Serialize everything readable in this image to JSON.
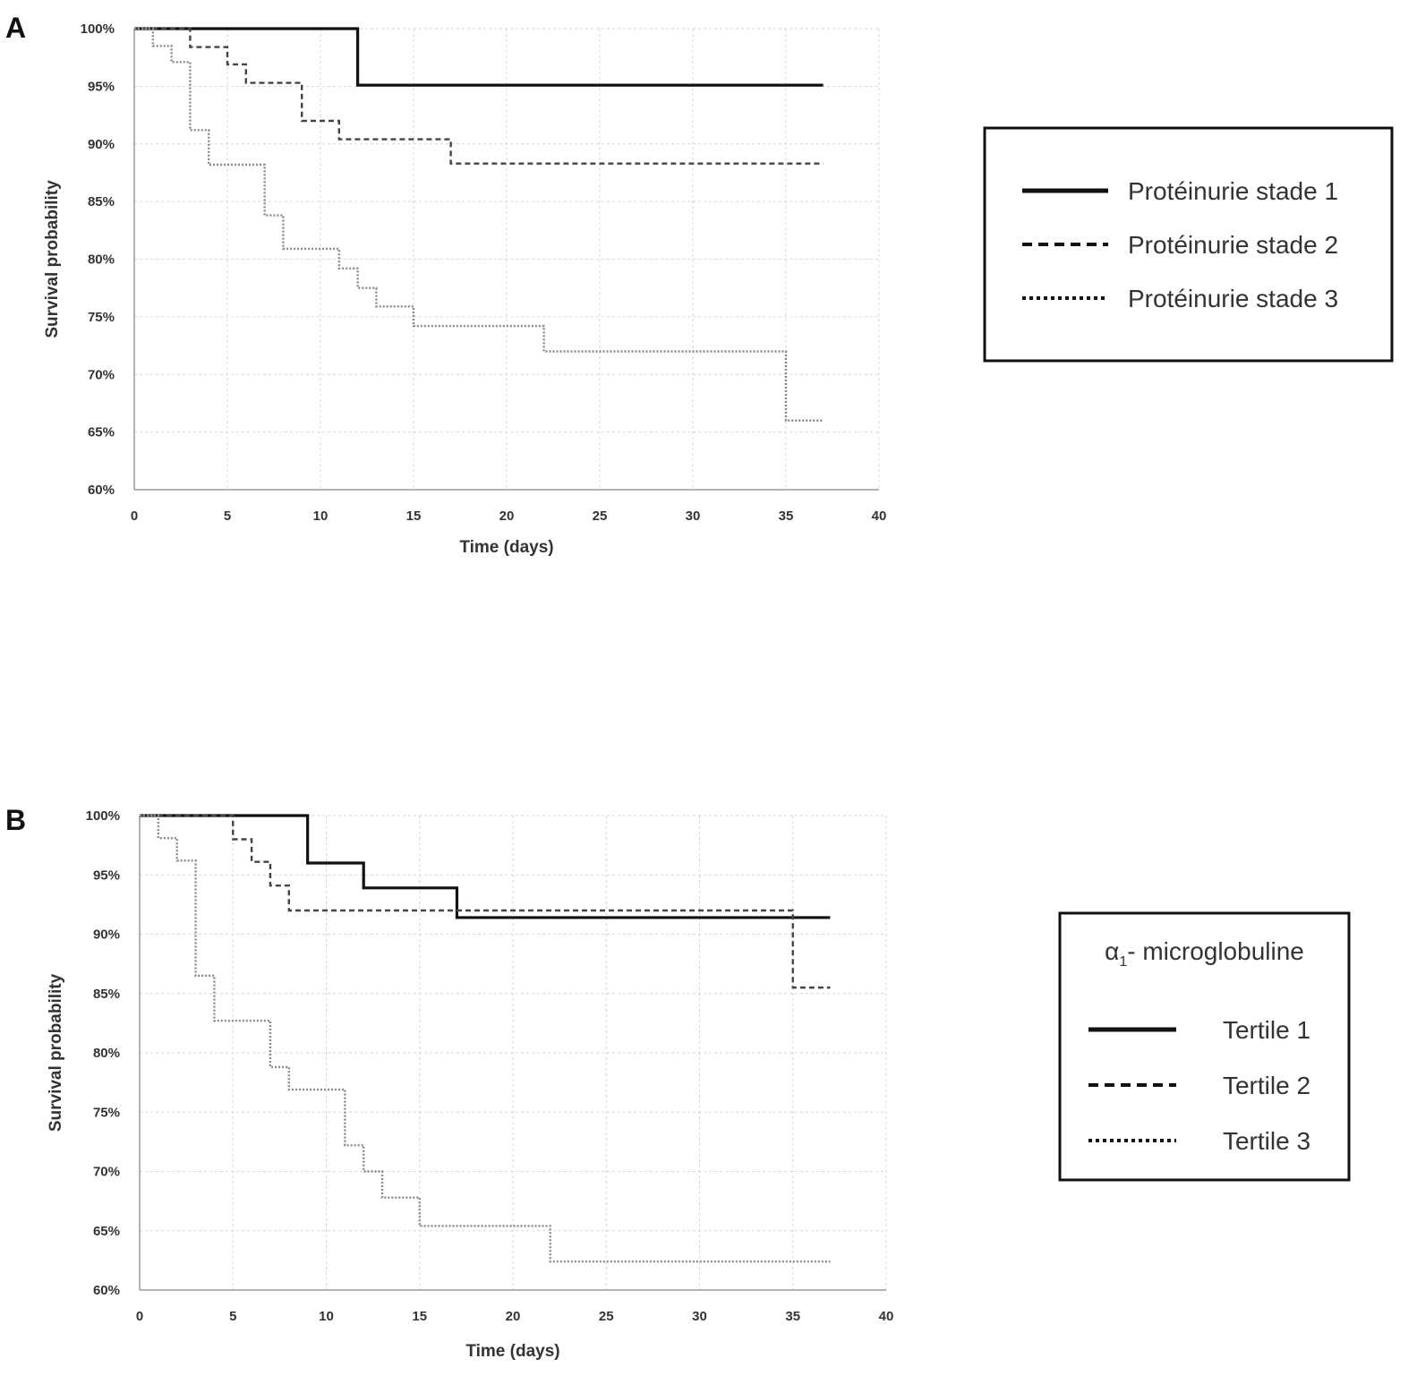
{
  "chart_data": [
    {
      "panel": "A",
      "type": "line",
      "xlabel": "Time (days)",
      "ylabel": "Survival probability",
      "xlim": [
        0,
        40
      ],
      "ylim": [
        0.6,
        1.0
      ],
      "xticks": [
        "0",
        "5",
        "10",
        "15",
        "20",
        "25",
        "30",
        "35",
        "40"
      ],
      "yticks": [
        "60%",
        "65%",
        "70%",
        "75%",
        "80%",
        "85%",
        "90%",
        "95%",
        "100%"
      ],
      "grid": true,
      "step": true,
      "legend": {
        "placement": "right",
        "title": "",
        "entries": [
          "Protéinurie stade 1",
          "Protéinurie stade 2",
          "Protéinurie stade 3"
        ]
      },
      "series": [
        {
          "name": "Protéinurie stade 1",
          "line_style": "solid",
          "color": "#111111",
          "x": [
            0,
            12,
            37
          ],
          "y": [
            1.0,
            0.951,
            0.951
          ]
        },
        {
          "name": "Protéinurie stade 2",
          "line_style": "dashed",
          "color": "#444444",
          "x": [
            0,
            3,
            5,
            6,
            9,
            11,
            17,
            37
          ],
          "y": [
            1.0,
            0.984,
            0.969,
            0.953,
            0.92,
            0.904,
            0.883,
            0.883
          ]
        },
        {
          "name": "Protéinurie stade 3",
          "line_style": "dotted",
          "color": "#888888",
          "x": [
            0,
            1,
            2,
            3,
            4,
            7,
            8,
            11,
            12,
            13,
            15,
            22,
            35,
            37
          ],
          "y": [
            1.0,
            0.985,
            0.971,
            0.912,
            0.882,
            0.838,
            0.809,
            0.792,
            0.775,
            0.759,
            0.742,
            0.72,
            0.66,
            0.66
          ]
        }
      ]
    },
    {
      "panel": "B",
      "type": "line",
      "xlabel": "Time (days)",
      "ylabel": "Survival probability",
      "xlim": [
        0,
        40
      ],
      "ylim": [
        0.6,
        1.0
      ],
      "xticks": [
        "0",
        "5",
        "10",
        "15",
        "20",
        "25",
        "30",
        "35",
        "40"
      ],
      "yticks": [
        "60%",
        "65%",
        "70%",
        "75%",
        "80%",
        "85%",
        "90%",
        "95%",
        "100%"
      ],
      "grid": true,
      "step": true,
      "legend": {
        "placement": "right",
        "title_main": "α",
        "title_sub": "1",
        "title_rest": "- microglobuline",
        "entries": [
          "Tertile 1",
          "Tertile 2",
          "Tertile 3"
        ]
      },
      "series": [
        {
          "name": "Tertile 1",
          "line_style": "solid",
          "color": "#111111",
          "x": [
            0,
            9,
            12,
            17,
            37
          ],
          "y": [
            1.0,
            0.96,
            0.939,
            0.914,
            0.914
          ]
        },
        {
          "name": "Tertile 2",
          "line_style": "dashed",
          "color": "#444444",
          "x": [
            0,
            5,
            6,
            7,
            8,
            35,
            37
          ],
          "y": [
            1.0,
            0.98,
            0.961,
            0.941,
            0.92,
            0.855,
            0.855
          ]
        },
        {
          "name": "Tertile 3",
          "line_style": "dotted",
          "color": "#888888",
          "x": [
            0,
            1,
            2,
            3,
            4,
            7,
            8,
            11,
            12,
            13,
            15,
            22,
            37
          ],
          "y": [
            1.0,
            0.981,
            0.962,
            0.865,
            0.827,
            0.788,
            0.769,
            0.722,
            0.7,
            0.678,
            0.654,
            0.624,
            0.624
          ]
        }
      ]
    }
  ]
}
